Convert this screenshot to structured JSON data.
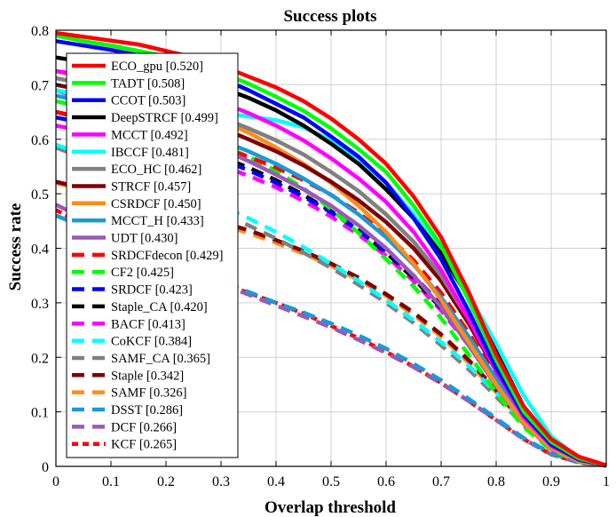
{
  "chart_data": {
    "type": "line",
    "title": "Success plots",
    "xlabel": "Overlap threshold",
    "ylabel": "Success rate",
    "xlim": [
      0,
      1
    ],
    "ylim": [
      0,
      0.8
    ],
    "xticks": [
      "0",
      "0.1",
      "0.2",
      "0.3",
      "0.4",
      "0.5",
      "0.6",
      "0.7",
      "0.8",
      "0.9",
      "1"
    ],
    "yticks": [
      "0",
      "0.1",
      "0.2",
      "0.3",
      "0.4",
      "0.5",
      "0.6",
      "0.7",
      "0.8"
    ],
    "grid": "on",
    "legend_position": "top-left",
    "x": [
      0,
      0.05,
      0.1,
      0.15,
      0.2,
      0.25,
      0.3,
      0.35,
      0.4,
      0.45,
      0.5,
      0.55,
      0.6,
      0.65,
      0.7,
      0.75,
      0.8,
      0.85,
      0.9,
      0.95,
      1.0
    ],
    "series": [
      {
        "name": "ECO_gpu [0.520]",
        "color": "#ff0000",
        "dash": "solid",
        "values": [
          0.795,
          0.788,
          0.781,
          0.774,
          0.762,
          0.75,
          0.735,
          0.715,
          0.695,
          0.67,
          0.638,
          0.6,
          0.555,
          0.495,
          0.42,
          0.32,
          0.205,
          0.11,
          0.05,
          0.018,
          0.002
        ]
      },
      {
        "name": "TADT [0.508]",
        "color": "#00ff00",
        "dash": "solid",
        "values": [
          0.79,
          0.78,
          0.772,
          0.762,
          0.752,
          0.74,
          0.722,
          0.702,
          0.678,
          0.652,
          0.62,
          0.582,
          0.54,
          0.478,
          0.405,
          0.305,
          0.195,
          0.1,
          0.045,
          0.015,
          0.002
        ]
      },
      {
        "name": "CCOT [0.503]",
        "color": "#0000ff",
        "dash": "solid",
        "values": [
          0.78,
          0.772,
          0.764,
          0.754,
          0.742,
          0.728,
          0.712,
          0.69,
          0.665,
          0.64,
          0.605,
          0.568,
          0.52,
          0.455,
          0.38,
          0.285,
          0.18,
          0.095,
          0.04,
          0.013,
          0.002
        ]
      },
      {
        "name": "DeepSTRCF [0.499]",
        "color": "#000000",
        "dash": "solid",
        "values": [
          0.75,
          0.742,
          0.735,
          0.727,
          0.718,
          0.707,
          0.695,
          0.676,
          0.653,
          0.625,
          0.592,
          0.555,
          0.508,
          0.455,
          0.39,
          0.31,
          0.21,
          0.11,
          0.045,
          0.013,
          0.002
        ]
      },
      {
        "name": "MCCT [0.492]",
        "color": "#ff00ff",
        "dash": "solid",
        "values": [
          0.725,
          0.718,
          0.71,
          0.702,
          0.692,
          0.682,
          0.668,
          0.648,
          0.625,
          0.598,
          0.565,
          0.528,
          0.485,
          0.43,
          0.36,
          0.27,
          0.175,
          0.09,
          0.038,
          0.012,
          0.002
        ]
      },
      {
        "name": "IBCCF [0.481]",
        "color": "#00ffff",
        "dash": "solid",
        "values": [
          0.69,
          0.68,
          0.672,
          0.665,
          0.658,
          0.652,
          0.648,
          0.642,
          0.635,
          0.622,
          0.598,
          0.565,
          0.52,
          0.462,
          0.395,
          0.315,
          0.225,
          0.13,
          0.055,
          0.015,
          0.002
        ]
      },
      {
        "name": "ECO_HC [0.462]",
        "color": "#808080",
        "dash": "solid",
        "values": [
          0.712,
          0.702,
          0.692,
          0.68,
          0.668,
          0.655,
          0.64,
          0.62,
          0.598,
          0.572,
          0.54,
          0.505,
          0.462,
          0.412,
          0.35,
          0.27,
          0.18,
          0.095,
          0.04,
          0.012,
          0.002
        ]
      },
      {
        "name": "STRCF [0.457]",
        "color": "#800000",
        "dash": "solid",
        "values": [
          0.7,
          0.69,
          0.678,
          0.666,
          0.652,
          0.638,
          0.621,
          0.6,
          0.578,
          0.552,
          0.522,
          0.488,
          0.448,
          0.4,
          0.34,
          0.262,
          0.175,
          0.092,
          0.038,
          0.012,
          0.002
        ]
      },
      {
        "name": "CSRDCF [0.450]",
        "color": "#ff8c1a",
        "dash": "solid",
        "values": [
          0.725,
          0.712,
          0.7,
          0.686,
          0.672,
          0.655,
          0.635,
          0.612,
          0.585,
          0.555,
          0.52,
          0.478,
          0.43,
          0.372,
          0.305,
          0.228,
          0.15,
          0.08,
          0.033,
          0.01,
          0.002
        ]
      },
      {
        "name": "MCCT_H [0.433]",
        "color": "#1a9ad6",
        "dash": "solid",
        "values": [
          0.68,
          0.668,
          0.656,
          0.643,
          0.63,
          0.615,
          0.598,
          0.578,
          0.555,
          0.528,
          0.498,
          0.462,
          0.42,
          0.37,
          0.31,
          0.238,
          0.16,
          0.085,
          0.035,
          0.01,
          0.002
        ]
      },
      {
        "name": "UDT [0.430]",
        "color": "#9b59b6",
        "dash": "solid",
        "values": [
          0.69,
          0.672,
          0.655,
          0.638,
          0.62,
          0.602,
          0.582,
          0.56,
          0.535,
          0.508,
          0.478,
          0.442,
          0.4,
          0.35,
          0.292,
          0.222,
          0.148,
          0.08,
          0.033,
          0.01,
          0.002
        ]
      },
      {
        "name": "SRDCFdecon [0.429]",
        "color": "#ff0000",
        "dash": "dashed",
        "values": [
          0.65,
          0.64,
          0.63,
          0.62,
          0.61,
          0.598,
          0.585,
          0.568,
          0.548,
          0.525,
          0.498,
          0.465,
          0.425,
          0.378,
          0.318,
          0.245,
          0.165,
          0.088,
          0.036,
          0.011,
          0.002
        ]
      },
      {
        "name": "CF2 [0.425]",
        "color": "#00ff00",
        "dash": "dashed",
        "values": [
          0.67,
          0.658,
          0.647,
          0.635,
          0.622,
          0.608,
          0.59,
          0.568,
          0.542,
          0.51,
          0.472,
          0.428,
          0.38,
          0.33,
          0.272,
          0.205,
          0.135,
          0.072,
          0.03,
          0.009,
          0.002
        ]
      },
      {
        "name": "SRDCF [0.423]",
        "color": "#0000ff",
        "dash": "dashed",
        "values": [
          0.64,
          0.63,
          0.62,
          0.608,
          0.595,
          0.58,
          0.563,
          0.543,
          0.52,
          0.495,
          0.466,
          0.433,
          0.395,
          0.35,
          0.296,
          0.23,
          0.155,
          0.082,
          0.034,
          0.01,
          0.002
        ]
      },
      {
        "name": "Staple_CA [0.420]",
        "color": "#000000",
        "dash": "dashed",
        "values": [
          0.65,
          0.638,
          0.626,
          0.614,
          0.6,
          0.585,
          0.568,
          0.548,
          0.525,
          0.498,
          0.468,
          0.433,
          0.392,
          0.345,
          0.29,
          0.225,
          0.152,
          0.08,
          0.033,
          0.01,
          0.002
        ]
      },
      {
        "name": "BACF [0.413]",
        "color": "#ff00ff",
        "dash": "dashed",
        "values": [
          0.625,
          0.615,
          0.605,
          0.594,
          0.582,
          0.568,
          0.552,
          0.533,
          0.512,
          0.487,
          0.458,
          0.425,
          0.386,
          0.34,
          0.286,
          0.222,
          0.15,
          0.079,
          0.032,
          0.01,
          0.002
        ]
      },
      {
        "name": "CoKCF [0.384]",
        "color": "#00ffff",
        "dash": "dashed",
        "values": [
          0.59,
          0.572,
          0.555,
          0.538,
          0.52,
          0.5,
          0.478,
          0.455,
          0.43,
          0.402,
          0.372,
          0.34,
          0.305,
          0.268,
          0.228,
          0.185,
          0.135,
          0.08,
          0.035,
          0.01,
          0.002
        ]
      },
      {
        "name": "SAMF_CA [0.365]",
        "color": "#808080",
        "dash": "dashed",
        "values": [
          0.585,
          0.565,
          0.545,
          0.525,
          0.505,
          0.485,
          0.464,
          0.442,
          0.418,
          0.392,
          0.364,
          0.333,
          0.3,
          0.263,
          0.222,
          0.178,
          0.128,
          0.075,
          0.032,
          0.009,
          0.002
        ]
      },
      {
        "name": "Staple [0.342]",
        "color": "#800000",
        "dash": "dashed",
        "values": [
          0.522,
          0.51,
          0.498,
          0.487,
          0.475,
          0.462,
          0.448,
          0.433,
          0.415,
          0.395,
          0.372,
          0.346,
          0.316,
          0.282,
          0.242,
          0.195,
          0.14,
          0.08,
          0.034,
          0.01,
          0.002
        ]
      },
      {
        "name": "SAMF [0.326]",
        "color": "#ff8c1a",
        "dash": "dashed",
        "values": [
          0.52,
          0.507,
          0.494,
          0.482,
          0.47,
          0.457,
          0.443,
          0.428,
          0.41,
          0.39,
          0.368,
          0.342,
          0.313,
          0.278,
          0.238,
          0.19,
          0.136,
          0.078,
          0.033,
          0.01,
          0.002
        ]
      },
      {
        "name": "DSST [0.286]",
        "color": "#1a9ad6",
        "dash": "dashed",
        "values": [
          0.46,
          0.44,
          0.42,
          0.4,
          0.38,
          0.36,
          0.34,
          0.32,
          0.3,
          0.282,
          0.262,
          0.24,
          0.216,
          0.188,
          0.158,
          0.124,
          0.088,
          0.052,
          0.024,
          0.008,
          0.002
        ]
      },
      {
        "name": "DCF [0.266]",
        "color": "#9b59b6",
        "dash": "dashed",
        "values": [
          0.48,
          0.455,
          0.43,
          0.405,
          0.38,
          0.357,
          0.335,
          0.315,
          0.295,
          0.275,
          0.255,
          0.232,
          0.208,
          0.182,
          0.152,
          0.12,
          0.085,
          0.05,
          0.022,
          0.007,
          0.001
        ]
      },
      {
        "name": "KCF [0.265]",
        "color": "#ff0000",
        "dash": "dotted",
        "values": [
          0.47,
          0.445,
          0.42,
          0.398,
          0.376,
          0.356,
          0.337,
          0.318,
          0.3,
          0.28,
          0.258,
          0.235,
          0.21,
          0.183,
          0.153,
          0.12,
          0.085,
          0.05,
          0.022,
          0.007,
          0.001
        ]
      }
    ]
  }
}
